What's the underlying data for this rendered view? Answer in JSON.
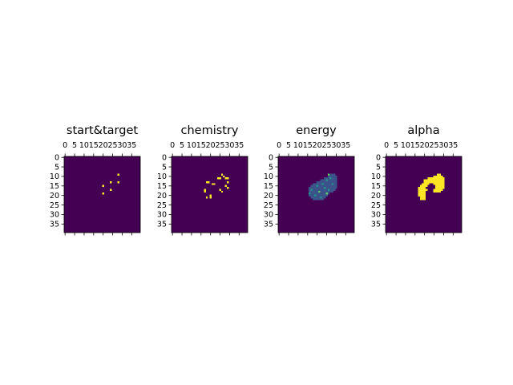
{
  "colors": {
    "background": "#440154",
    "low": "#3b528b",
    "mid": "#21918c",
    "high": "#5ec962",
    "peak": "#fde725"
  },
  "chart_data": [
    {
      "type": "heatmap",
      "title": "start&target",
      "xticks": [
        "0",
        "5",
        "10",
        "15",
        "20",
        "25",
        "30",
        "35"
      ],
      "yticks": [
        "0",
        "5",
        "10",
        "15",
        "20",
        "25",
        "30",
        "35"
      ],
      "xlim": [
        0,
        40
      ],
      "ylim": [
        0,
        40
      ],
      "cells": [
        {
          "x": 28,
          "y": 9,
          "v": "peak"
        },
        {
          "x": 24,
          "y": 13,
          "v": "peak"
        },
        {
          "x": 28,
          "y": 13,
          "v": "peak"
        },
        {
          "x": 20,
          "y": 15,
          "v": "peak"
        },
        {
          "x": 24,
          "y": 17,
          "v": "peak"
        },
        {
          "x": 20,
          "y": 19,
          "v": "peak"
        }
      ]
    },
    {
      "type": "heatmap",
      "title": "chemistry",
      "xticks": [
        "0",
        "5",
        "10",
        "15",
        "20",
        "25",
        "30",
        "35"
      ],
      "yticks": [
        "0",
        "5",
        "10",
        "15",
        "20",
        "25",
        "30",
        "35"
      ],
      "xlim": [
        0,
        40
      ],
      "ylim": [
        0,
        40
      ],
      "cells": [
        {
          "x": 26,
          "y": 9,
          "v": "peak"
        },
        {
          "x": 27,
          "y": 10,
          "v": "peak"
        },
        {
          "x": 24,
          "y": 11,
          "v": "peak"
        },
        {
          "x": 25,
          "y": 11,
          "v": "peak"
        },
        {
          "x": 28,
          "y": 11,
          "v": "peak"
        },
        {
          "x": 29,
          "y": 11,
          "v": "peak"
        },
        {
          "x": 18,
          "y": 13,
          "v": "peak"
        },
        {
          "x": 19,
          "y": 13,
          "v": "peak"
        },
        {
          "x": 21,
          "y": 14,
          "v": "peak"
        },
        {
          "x": 22,
          "y": 14,
          "v": "peak"
        },
        {
          "x": 29,
          "y": 13,
          "v": "peak"
        },
        {
          "x": 28,
          "y": 15,
          "v": "peak"
        },
        {
          "x": 29,
          "y": 16,
          "v": "peak"
        },
        {
          "x": 17,
          "y": 17,
          "v": "peak"
        },
        {
          "x": 17,
          "y": 18,
          "v": "peak"
        },
        {
          "x": 25,
          "y": 17,
          "v": "peak"
        },
        {
          "x": 26,
          "y": 18,
          "v": "peak"
        },
        {
          "x": 20,
          "y": 20,
          "v": "peak"
        },
        {
          "x": 20,
          "y": 21,
          "v": "peak"
        },
        {
          "x": 18,
          "y": 21,
          "v": "peak"
        }
      ]
    },
    {
      "type": "heatmap",
      "title": "energy",
      "xticks": [
        "0",
        "5",
        "10",
        "15",
        "20",
        "25",
        "30",
        "35"
      ],
      "yticks": [
        "0",
        "5",
        "10",
        "15",
        "20",
        "25",
        "30",
        "35"
      ],
      "xlim": [
        0,
        40
      ],
      "ylim": [
        0,
        40
      ],
      "region": {
        "rows": [
          [
            27,
            9,
            29
          ],
          [
            26,
            10,
            30
          ],
          [
            24,
            11,
            30
          ],
          [
            22,
            12,
            30
          ],
          [
            20,
            13,
            30
          ],
          [
            18,
            14,
            30
          ],
          [
            17,
            15,
            30
          ],
          [
            16,
            16,
            30
          ],
          [
            16,
            17,
            29
          ],
          [
            16,
            18,
            28
          ],
          [
            16,
            19,
            26
          ],
          [
            16,
            20,
            25
          ],
          [
            17,
            21,
            24
          ],
          [
            18,
            22,
            23
          ]
        ],
        "fill": "low"
      },
      "cells": [
        {
          "x": 26,
          "y": 9,
          "v": "high"
        },
        {
          "x": 27,
          "y": 11,
          "v": "mid"
        },
        {
          "x": 25,
          "y": 12,
          "v": "mid"
        },
        {
          "x": 23,
          "y": 14,
          "v": "mid"
        },
        {
          "x": 28,
          "y": 14,
          "v": "mid"
        },
        {
          "x": 20,
          "y": 15,
          "v": "mid"
        },
        {
          "x": 24,
          "y": 16,
          "v": "mid"
        },
        {
          "x": 17,
          "y": 17,
          "v": "mid"
        },
        {
          "x": 21,
          "y": 18,
          "v": "high"
        },
        {
          "x": 26,
          "y": 17,
          "v": "mid"
        },
        {
          "x": 16,
          "y": 19,
          "v": "mid"
        },
        {
          "x": 25,
          "y": 19,
          "v": "high"
        },
        {
          "x": 19,
          "y": 20,
          "v": "mid"
        },
        {
          "x": 22,
          "y": 21,
          "v": "mid"
        }
      ]
    },
    {
      "type": "heatmap",
      "title": "alpha",
      "xticks": [
        "0",
        "5",
        "10",
        "15",
        "20",
        "25",
        "30",
        "35"
      ],
      "yticks": [
        "0",
        "5",
        "10",
        "15",
        "20",
        "25",
        "30",
        "35"
      ],
      "xlim": [
        0,
        40
      ],
      "ylim": [
        0,
        40
      ],
      "region": {
        "rows": [
          [
            27,
            9,
            28
          ],
          [
            25,
            10,
            29
          ],
          [
            22,
            11,
            30
          ],
          [
            20,
            12,
            30
          ],
          [
            20,
            13,
            30
          ],
          [
            19,
            14,
            22
          ],
          [
            25,
            14,
            30
          ],
          [
            18,
            15,
            21
          ],
          [
            26,
            15,
            30
          ],
          [
            17,
            16,
            20
          ],
          [
            26,
            16,
            30
          ],
          [
            17,
            17,
            21
          ],
          [
            25,
            17,
            29
          ],
          [
            17,
            18,
            20
          ],
          [
            25,
            18,
            28
          ],
          [
            17,
            19,
            20
          ],
          [
            17,
            20,
            20
          ],
          [
            18,
            21,
            20
          ],
          [
            18,
            22,
            20
          ]
        ],
        "fill": "peak"
      },
      "cells": []
    }
  ]
}
